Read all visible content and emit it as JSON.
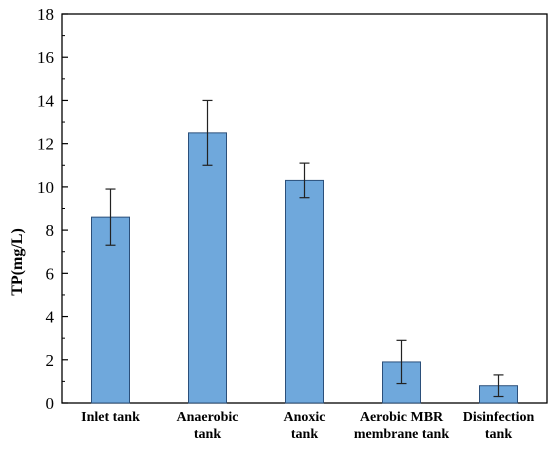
{
  "chart_data": {
    "type": "bar",
    "ylabel": "TP(mg/L)",
    "xlabel": "",
    "ylim": [
      0,
      18
    ],
    "yticks": [
      0,
      2,
      4,
      6,
      8,
      10,
      12,
      14,
      16,
      18
    ],
    "grid": false,
    "legend": "none",
    "categories": [
      [
        "Inlet tank"
      ],
      [
        "Anaerobic",
        "tank"
      ],
      [
        "Anoxic",
        "tank"
      ],
      [
        "Aerobic MBR",
        "membrane tank"
      ],
      [
        "Disinfection",
        "tank"
      ]
    ],
    "values": [
      8.6,
      12.5,
      10.3,
      1.9,
      0.8
    ],
    "error_low": [
      7.3,
      11.0,
      9.5,
      0.9,
      0.3
    ],
    "error_high": [
      9.9,
      14.0,
      11.1,
      2.9,
      1.3
    ],
    "colors": {
      "bar_fill": "#6fa8dc",
      "bar_stroke": "#2b4f7a",
      "axis": "#000000"
    }
  }
}
